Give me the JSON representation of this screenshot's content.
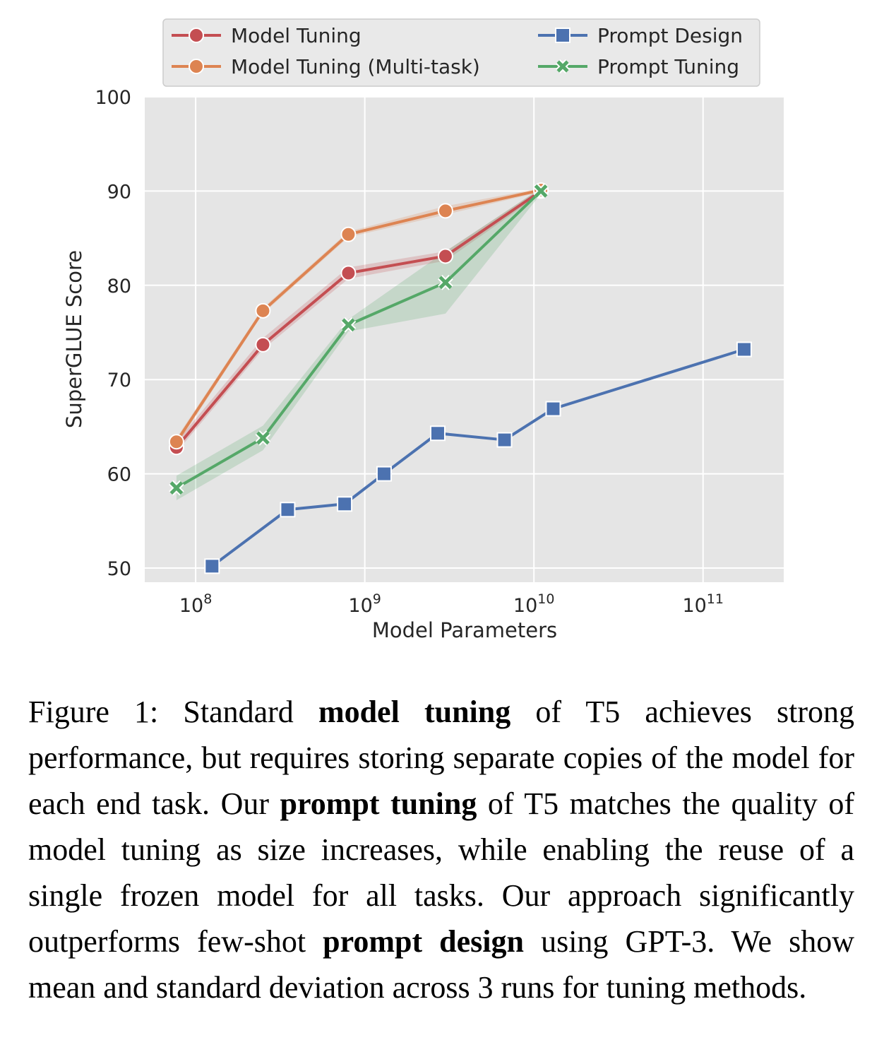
{
  "chart_data": {
    "type": "line",
    "title": "",
    "xlabel": "Model Parameters",
    "ylabel": "SuperGLUE Score",
    "xscale": "log",
    "xlim": [
      50000000,
      300000000000
    ],
    "ylim": [
      48.5,
      100
    ],
    "grid": true,
    "legend_position": "top",
    "x_ticks": [
      {
        "value": 100000000,
        "base": "10",
        "exp": "8"
      },
      {
        "value": 1000000000,
        "base": "10",
        "exp": "9"
      },
      {
        "value": 10000000000,
        "base": "10",
        "exp": "10"
      },
      {
        "value": 100000000000,
        "base": "10",
        "exp": "11"
      }
    ],
    "y_ticks": [
      50,
      60,
      70,
      80,
      90,
      100
    ],
    "series": [
      {
        "name": "Model Tuning",
        "color": "#c44e52",
        "marker": "circle",
        "x": [
          77000000,
          250000000,
          800000000,
          3000000000,
          11000000000
        ],
        "y": [
          62.8,
          73.7,
          81.3,
          83.1,
          90.0
        ],
        "band": [
          [
            62.3,
            63.4
          ],
          [
            73.2,
            74.4
          ],
          [
            80.7,
            81.9
          ],
          [
            82.6,
            83.6
          ],
          [
            89.7,
            90.3
          ]
        ]
      },
      {
        "name": "Model Tuning (Multi-task)",
        "color": "#dd8452",
        "marker": "circle",
        "x": [
          77000000,
          250000000,
          800000000,
          3000000000,
          11000000000
        ],
        "y": [
          63.4,
          77.3,
          85.4,
          87.9,
          90.1
        ],
        "band": [
          [
            63.0,
            63.8
          ],
          [
            77.0,
            77.6
          ],
          [
            85.1,
            85.7
          ],
          [
            87.5,
            88.4
          ],
          [
            89.9,
            90.3
          ]
        ]
      },
      {
        "name": "Prompt Design",
        "color": "#4c72b0",
        "marker": "square",
        "x": [
          125000000,
          350000000,
          760000000,
          1300000000,
          2700000000,
          6700000000,
          13000000000,
          175000000000
        ],
        "y": [
          50.2,
          56.2,
          56.8,
          60.0,
          64.3,
          63.6,
          66.9,
          73.2
        ]
      },
      {
        "name": "Prompt Tuning",
        "color": "#55a868",
        "marker": "x",
        "x": [
          77000000,
          250000000,
          800000000,
          3000000000,
          11000000000
        ],
        "y": [
          58.5,
          63.8,
          75.8,
          80.3,
          90.0
        ],
        "band": [
          [
            57.2,
            59.8
          ],
          [
            62.5,
            65.1
          ],
          [
            75.1,
            76.4
          ],
          [
            77.0,
            83.6
          ],
          [
            89.7,
            90.3
          ]
        ]
      }
    ]
  },
  "caption": {
    "figure_label": "Figure 1: Standard",
    "bold_1": "model tuning",
    "text_1": "of T5 achieves strong performance, but requires storing separate copies of the model for each end task. Our",
    "bold_2": "prompt tuning",
    "text_2": "of T5 matches the quality of model tuning as size increases, while enabling the reuse of a single frozen model for all tasks. Our approach significantly outperforms few-shot",
    "bold_3": "prompt design",
    "text_3": "using GPT-3. We show mean and standard deviation across 3 runs for tuning methods."
  }
}
